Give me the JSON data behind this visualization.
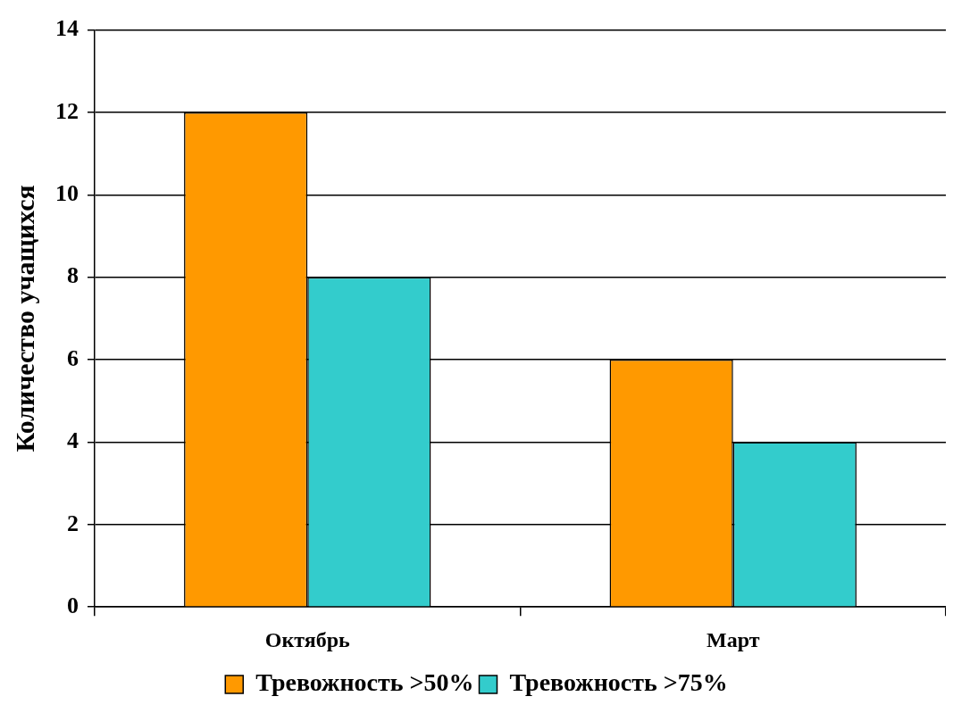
{
  "chart_data": {
    "type": "bar",
    "ylabel": "Количество учащихся",
    "categories": [
      "Октябрь",
      "Март"
    ],
    "series": [
      {
        "name": "Тревожность >50%",
        "color": "#ff9900",
        "values": [
          12,
          6
        ]
      },
      {
        "name": "Тревожность >75%",
        "color": "#33cccc",
        "values": [
          8,
          4
        ]
      }
    ],
    "ylim": [
      0,
      14
    ],
    "yticks": [
      0,
      2,
      4,
      6,
      8,
      10,
      12,
      14
    ],
    "grid": "y",
    "legend": "bottom"
  }
}
